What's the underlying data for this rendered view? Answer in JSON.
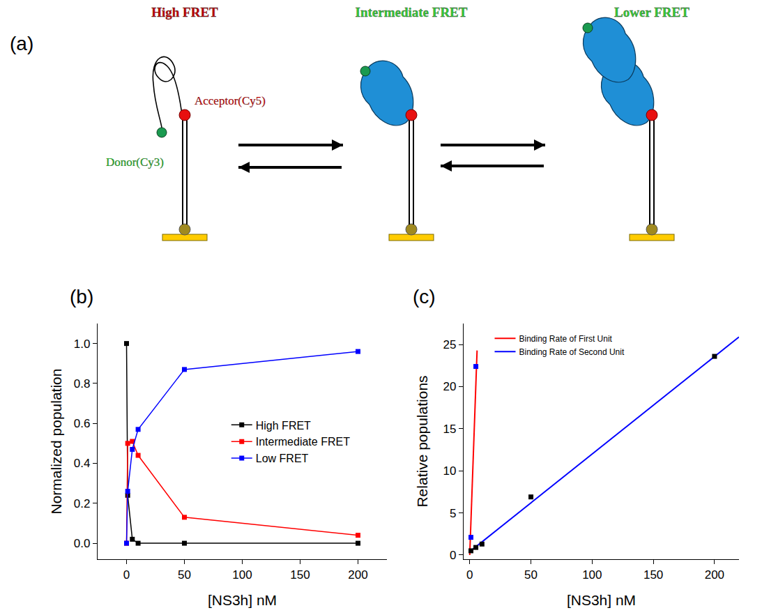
{
  "panel_labels": [
    "(a)",
    "(b)",
    "(c)"
  ],
  "diagram": {
    "states": [
      {
        "title": "High FRET",
        "color": "#c00000",
        "proteins": 0
      },
      {
        "title": "Intermediate FRET",
        "color": "#33cc33",
        "proteins": 1
      },
      {
        "title": "Lower FRET",
        "color": "#33cc33",
        "proteins": 2
      }
    ],
    "acceptor": {
      "label": "Acceptor(Cy5)",
      "color": "#c00000"
    },
    "donor": {
      "label": "Donor(Cy3)",
      "color": "#22aa22"
    }
  },
  "chart_data": [
    {
      "type": "line",
      "marker": "square",
      "x_label": "[NS3h] nM",
      "y_label": "Normalized population",
      "x": [
        0,
        1,
        5,
        10,
        50,
        200
      ],
      "series": [
        {
          "name": "High FRET",
          "color": "#000000",
          "values": [
            1.0,
            0.24,
            0.02,
            0,
            0,
            0
          ]
        },
        {
          "name": "Intermediate FRET",
          "color": "#ff0000",
          "values": [
            0,
            0.5,
            0.51,
            0.44,
            0.13,
            0.04
          ]
        },
        {
          "name": "Low FRET",
          "color": "#0000ff",
          "values": [
            0,
            0.26,
            0.47,
            0.57,
            0.87,
            0.96
          ]
        }
      ],
      "xlim": [
        -25,
        225
      ],
      "xticks": [
        0,
        50,
        100,
        150,
        200
      ],
      "ylim": [
        -0.08,
        1.1
      ],
      "yticks": [
        {
          "value": 0,
          "label": "0.0"
        },
        {
          "value": 0.2,
          "label": "0.2"
        },
        {
          "value": 0.4,
          "label": "0.4"
        },
        {
          "value": 0.6,
          "label": "0.6"
        },
        {
          "value": 0.8,
          "label": "0.8"
        },
        {
          "value": 1.0,
          "label": "1.0"
        }
      ],
      "legend": "right",
      "grid": false
    },
    {
      "type": "scatter",
      "x_label": "[NS3h] nM",
      "y_label": "Relative populations",
      "series": [
        {
          "name": "Binding Rate of First Unit",
          "type": "line",
          "color": "#ff0000",
          "x": [
            0,
            6
          ],
          "values": [
            0,
            24.3
          ]
        },
        {
          "name": "Binding Rate of Second Unit",
          "type": "line",
          "color": "#0000ff",
          "x": [
            0,
            220
          ],
          "values": [
            0.4,
            25.9
          ]
        },
        {
          "type": "scatter",
          "marker": "square",
          "color": "#0000ff",
          "x": [
            1,
            5
          ],
          "values": [
            2.1,
            22.4
          ]
        },
        {
          "type": "scatter",
          "marker": "square",
          "color": "#000000",
          "x": [
            1,
            5,
            10,
            50,
            200
          ],
          "values": [
            0.5,
            0.9,
            1.3,
            6.9,
            23.6
          ]
        }
      ],
      "xlim": [
        -5,
        220
      ],
      "xticks": [
        0,
        50,
        100,
        150,
        200
      ],
      "ylim": [
        -0.5,
        27.5
      ],
      "yticks": [
        0,
        5,
        10,
        15,
        20,
        25
      ],
      "legend": "upper left",
      "grid": false
    }
  ]
}
